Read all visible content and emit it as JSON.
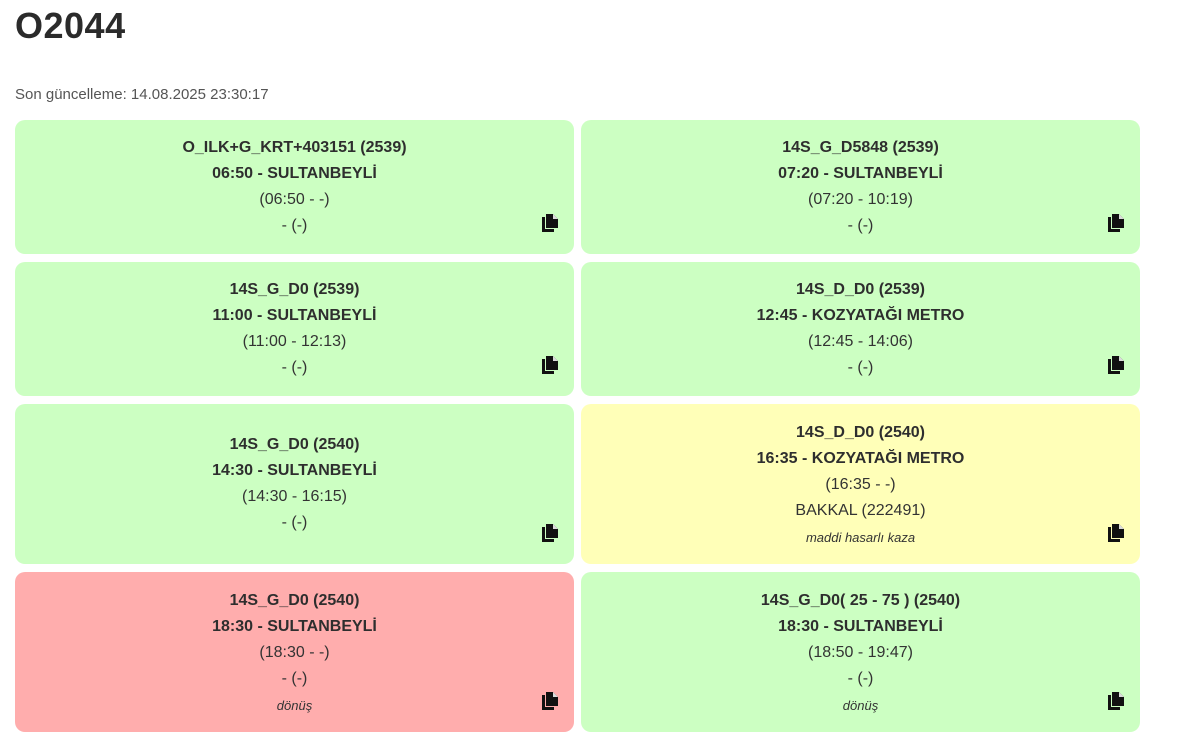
{
  "page": {
    "title": "O2044",
    "last_updated": "Son güncelleme: 14.08.2025 23:30:17"
  },
  "cards": [
    {
      "color": "#ccffc2",
      "title": "O_ILK+G_KRT+403151 (2539)",
      "departure": "06:50 - SULTANBEYLİ",
      "time_range": "(06:50 - -)",
      "vehicle": "- (-)",
      "note": ""
    },
    {
      "color": "#ccffc2",
      "title": "14S_G_D5848 (2539)",
      "departure": "07:20 - SULTANBEYLİ",
      "time_range": "(07:20 - 10:19)",
      "vehicle": "- (-)",
      "note": ""
    },
    {
      "color": "#ccffc2",
      "title": "14S_G_D0 (2539)",
      "departure": "11:00 - SULTANBEYLİ",
      "time_range": "(11:00 - 12:13)",
      "vehicle": "- (-)",
      "note": ""
    },
    {
      "color": "#ccffc2",
      "title": "14S_D_D0 (2539)",
      "departure": "12:45 - KOZYATAĞI METRO",
      "time_range": "(12:45 - 14:06)",
      "vehicle": "- (-)",
      "note": ""
    },
    {
      "color": "#ccffc2",
      "title": "14S_G_D0 (2540)",
      "departure": "14:30 - SULTANBEYLİ",
      "time_range": "(14:30 - 16:15)",
      "vehicle": "- (-)",
      "note": ""
    },
    {
      "color": "#ffffb8",
      "title": "14S_D_D0 (2540)",
      "departure": "16:35 - KOZYATAĞI METRO",
      "time_range": "(16:35 - -)",
      "vehicle": "BAKKAL (222491)",
      "note": "maddi hasarlı kaza"
    },
    {
      "color": "#ffadad",
      "title": "14S_G_D0 (2540)",
      "departure": "18:30 - SULTANBEYLİ",
      "time_range": "(18:30 - -)",
      "vehicle": "- (-)",
      "note": "dönüş"
    },
    {
      "color": "#ccffc2",
      "title": "14S_G_D0( 25 - 75 ) (2540)",
      "departure": "18:30 - SULTANBEYLİ",
      "time_range": "(18:50 - 19:47)",
      "vehicle": "- (-)",
      "note": "dönüş"
    }
  ],
  "icons": {
    "copy": "copy-icon"
  }
}
